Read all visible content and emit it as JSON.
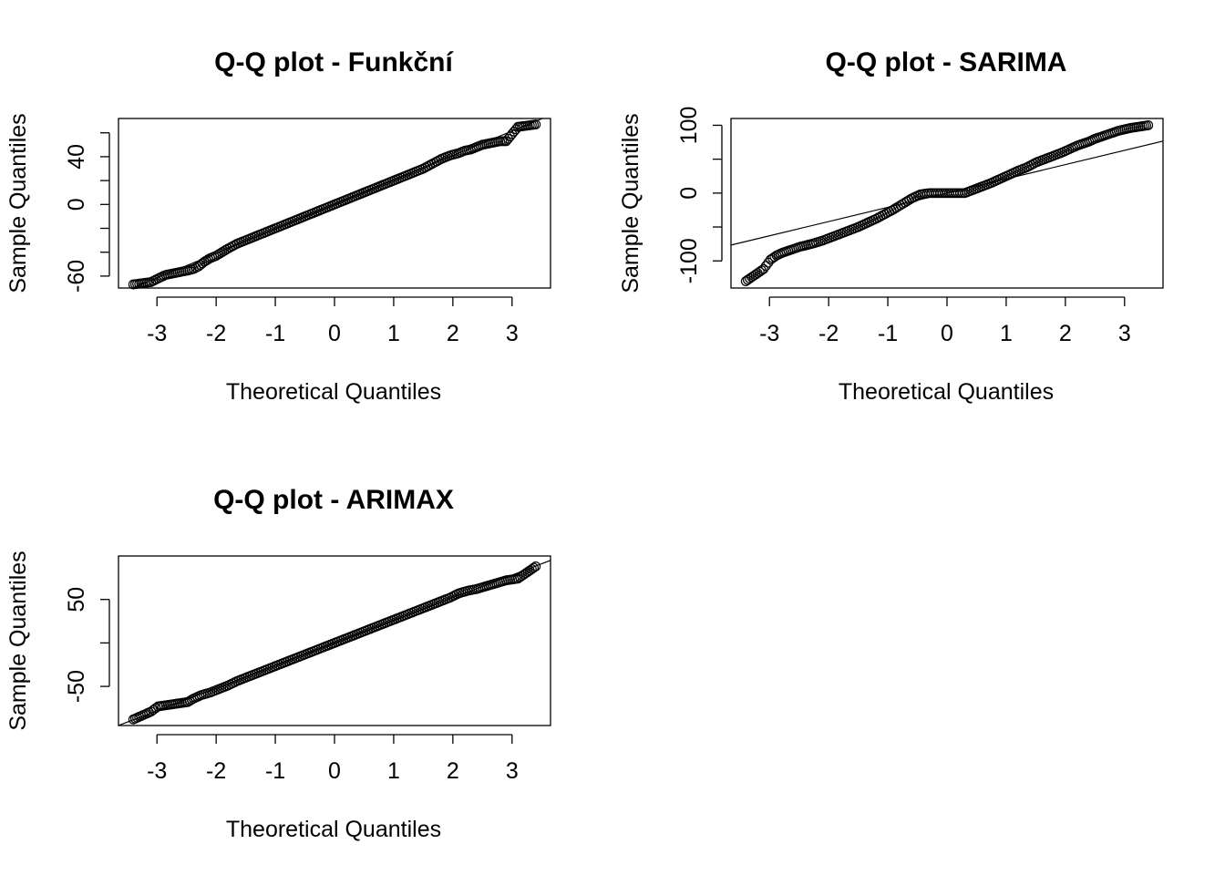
{
  "chart_data": [
    {
      "type": "scatter",
      "title": "Q-Q plot - Funkční",
      "xlabel": "Theoretical Quantiles",
      "ylabel": "Sample Quantiles",
      "xlim": [
        -3.65,
        3.65
      ],
      "ylim": [
        -70,
        72
      ],
      "xticks": [
        -3,
        -2,
        -1,
        0,
        1,
        2,
        3
      ],
      "xtick_labels": [
        "-3",
        "-2",
        "-1",
        "0",
        "1",
        "2",
        "3"
      ],
      "yticks": [
        -60,
        -40,
        -20,
        0,
        20,
        40,
        60
      ],
      "ytick_labels": [
        "-60",
        "",
        "",
        "0",
        "",
        "40",
        ""
      ],
      "grid": false,
      "reference_line": {
        "slope": 20.5,
        "intercept": 0
      },
      "points": {
        "x": [
          -3.4,
          -3.1,
          -2.98,
          -2.85,
          -2.75,
          -2.65,
          -2.55,
          -2.45,
          -2.38,
          -2.3,
          -2.2,
          -2.1,
          -2.0,
          -1.9,
          -1.8,
          -1.65,
          -1.5,
          -1.35,
          -1.2,
          -1.05,
          -0.9,
          -0.75,
          -0.6,
          -0.45,
          -0.3,
          -0.15,
          0.0,
          0.15,
          0.3,
          0.45,
          0.6,
          0.75,
          0.9,
          1.05,
          1.2,
          1.35,
          1.5,
          1.65,
          1.8,
          1.95,
          2.1,
          2.2,
          2.3,
          2.4,
          2.5,
          2.6,
          2.7,
          2.8,
          2.9,
          3.1,
          3.4
        ],
        "y": [
          -67,
          -65,
          -62,
          -59,
          -58,
          -57,
          -56,
          -55,
          -54,
          -52,
          -48,
          -45,
          -43,
          -40,
          -37,
          -33,
          -30,
          -27,
          -24,
          -21,
          -18,
          -15,
          -12,
          -9,
          -6,
          -3,
          0,
          3,
          6,
          9,
          12,
          15,
          18,
          21,
          24,
          27,
          30,
          34,
          38,
          41,
          43,
          45,
          46,
          48,
          50,
          51,
          52,
          53,
          53,
          65,
          67
        ]
      }
    },
    {
      "type": "scatter",
      "title": "Q-Q plot - SARIMA",
      "xlabel": "Theoretical Quantiles",
      "ylabel": "Sample Quantiles",
      "xlim": [
        -3.65,
        3.65
      ],
      "ylim": [
        -140,
        110
      ],
      "xticks": [
        -3,
        -2,
        -1,
        0,
        1,
        2,
        3
      ],
      "xtick_labels": [
        "-3",
        "-2",
        "-1",
        "0",
        "1",
        "2",
        "3"
      ],
      "yticks": [
        -100,
        -50,
        0,
        50,
        100
      ],
      "ytick_labels": [
        "-100",
        "",
        "0",
        "",
        "100"
      ],
      "grid": false,
      "reference_line": {
        "slope": 21,
        "intercept": 0
      },
      "points": {
        "x": [
          -3.4,
          -3.1,
          -2.98,
          -2.88,
          -2.78,
          -2.68,
          -2.58,
          -2.48,
          -2.38,
          -2.25,
          -2.1,
          -1.95,
          -1.8,
          -1.65,
          -1.5,
          -1.35,
          -1.2,
          -1.05,
          -0.9,
          -0.75,
          -0.6,
          -0.45,
          -0.3,
          -0.15,
          0.0,
          0.15,
          0.3,
          0.45,
          0.6,
          0.75,
          0.9,
          1.05,
          1.2,
          1.35,
          1.5,
          1.65,
          1.8,
          1.95,
          2.1,
          2.2,
          2.3,
          2.4,
          2.5,
          2.6,
          2.7,
          2.8,
          2.9,
          3.1,
          3.4
        ],
        "y": [
          -130,
          -112,
          -98,
          -92,
          -88,
          -85,
          -82,
          -79,
          -77,
          -74,
          -70,
          -65,
          -60,
          -55,
          -50,
          -44,
          -38,
          -31,
          -24,
          -16,
          -8,
          -2,
          0,
          0,
          0,
          0,
          0,
          5,
          10,
          15,
          21,
          27,
          33,
          38,
          45,
          50,
          55,
          60,
          66,
          70,
          73,
          76,
          80,
          83,
          86,
          89,
          92,
          96,
          100
        ]
      }
    },
    {
      "type": "scatter",
      "title": "Q-Q plot - ARIMAX",
      "xlabel": "Theoretical Quantiles",
      "ylabel": "Sample Quantiles",
      "xlim": [
        -3.65,
        3.65
      ],
      "ylim": [
        -95,
        100
      ],
      "xticks": [
        -3,
        -2,
        -1,
        0,
        1,
        2,
        3
      ],
      "xtick_labels": [
        "-3",
        "-2",
        "-1",
        "0",
        "1",
        "2",
        "3"
      ],
      "yticks": [
        -50,
        0,
        50
      ],
      "ytick_labels": [
        "-50",
        "",
        "50"
      ],
      "grid": false,
      "reference_line": {
        "slope": 26,
        "intercept": 0
      },
      "points": {
        "x": [
          -3.4,
          -3.1,
          -2.98,
          -2.88,
          -2.78,
          -2.68,
          -2.58,
          -2.48,
          -2.38,
          -2.25,
          -2.1,
          -1.95,
          -1.8,
          -1.65,
          -1.5,
          -1.35,
          -1.2,
          -1.05,
          -0.9,
          -0.75,
          -0.6,
          -0.45,
          -0.3,
          -0.15,
          0.0,
          0.15,
          0.3,
          0.45,
          0.6,
          0.75,
          0.9,
          1.05,
          1.2,
          1.35,
          1.5,
          1.65,
          1.8,
          1.95,
          2.1,
          2.25,
          2.4,
          2.5,
          2.6,
          2.7,
          2.8,
          2.9,
          3.1,
          3.4
        ],
        "y": [
          -88,
          -79,
          -73,
          -72,
          -71,
          -70,
          -69,
          -68,
          -64,
          -60,
          -57,
          -53,
          -49,
          -44,
          -40,
          -36,
          -32,
          -28,
          -24,
          -20,
          -16,
          -12,
          -8,
          -4,
          0,
          4,
          8,
          12,
          16,
          20,
          24,
          28,
          32,
          36,
          40,
          44,
          48,
          52,
          57,
          60,
          62,
          64,
          66,
          68,
          70,
          72,
          74,
          88
        ]
      }
    }
  ]
}
